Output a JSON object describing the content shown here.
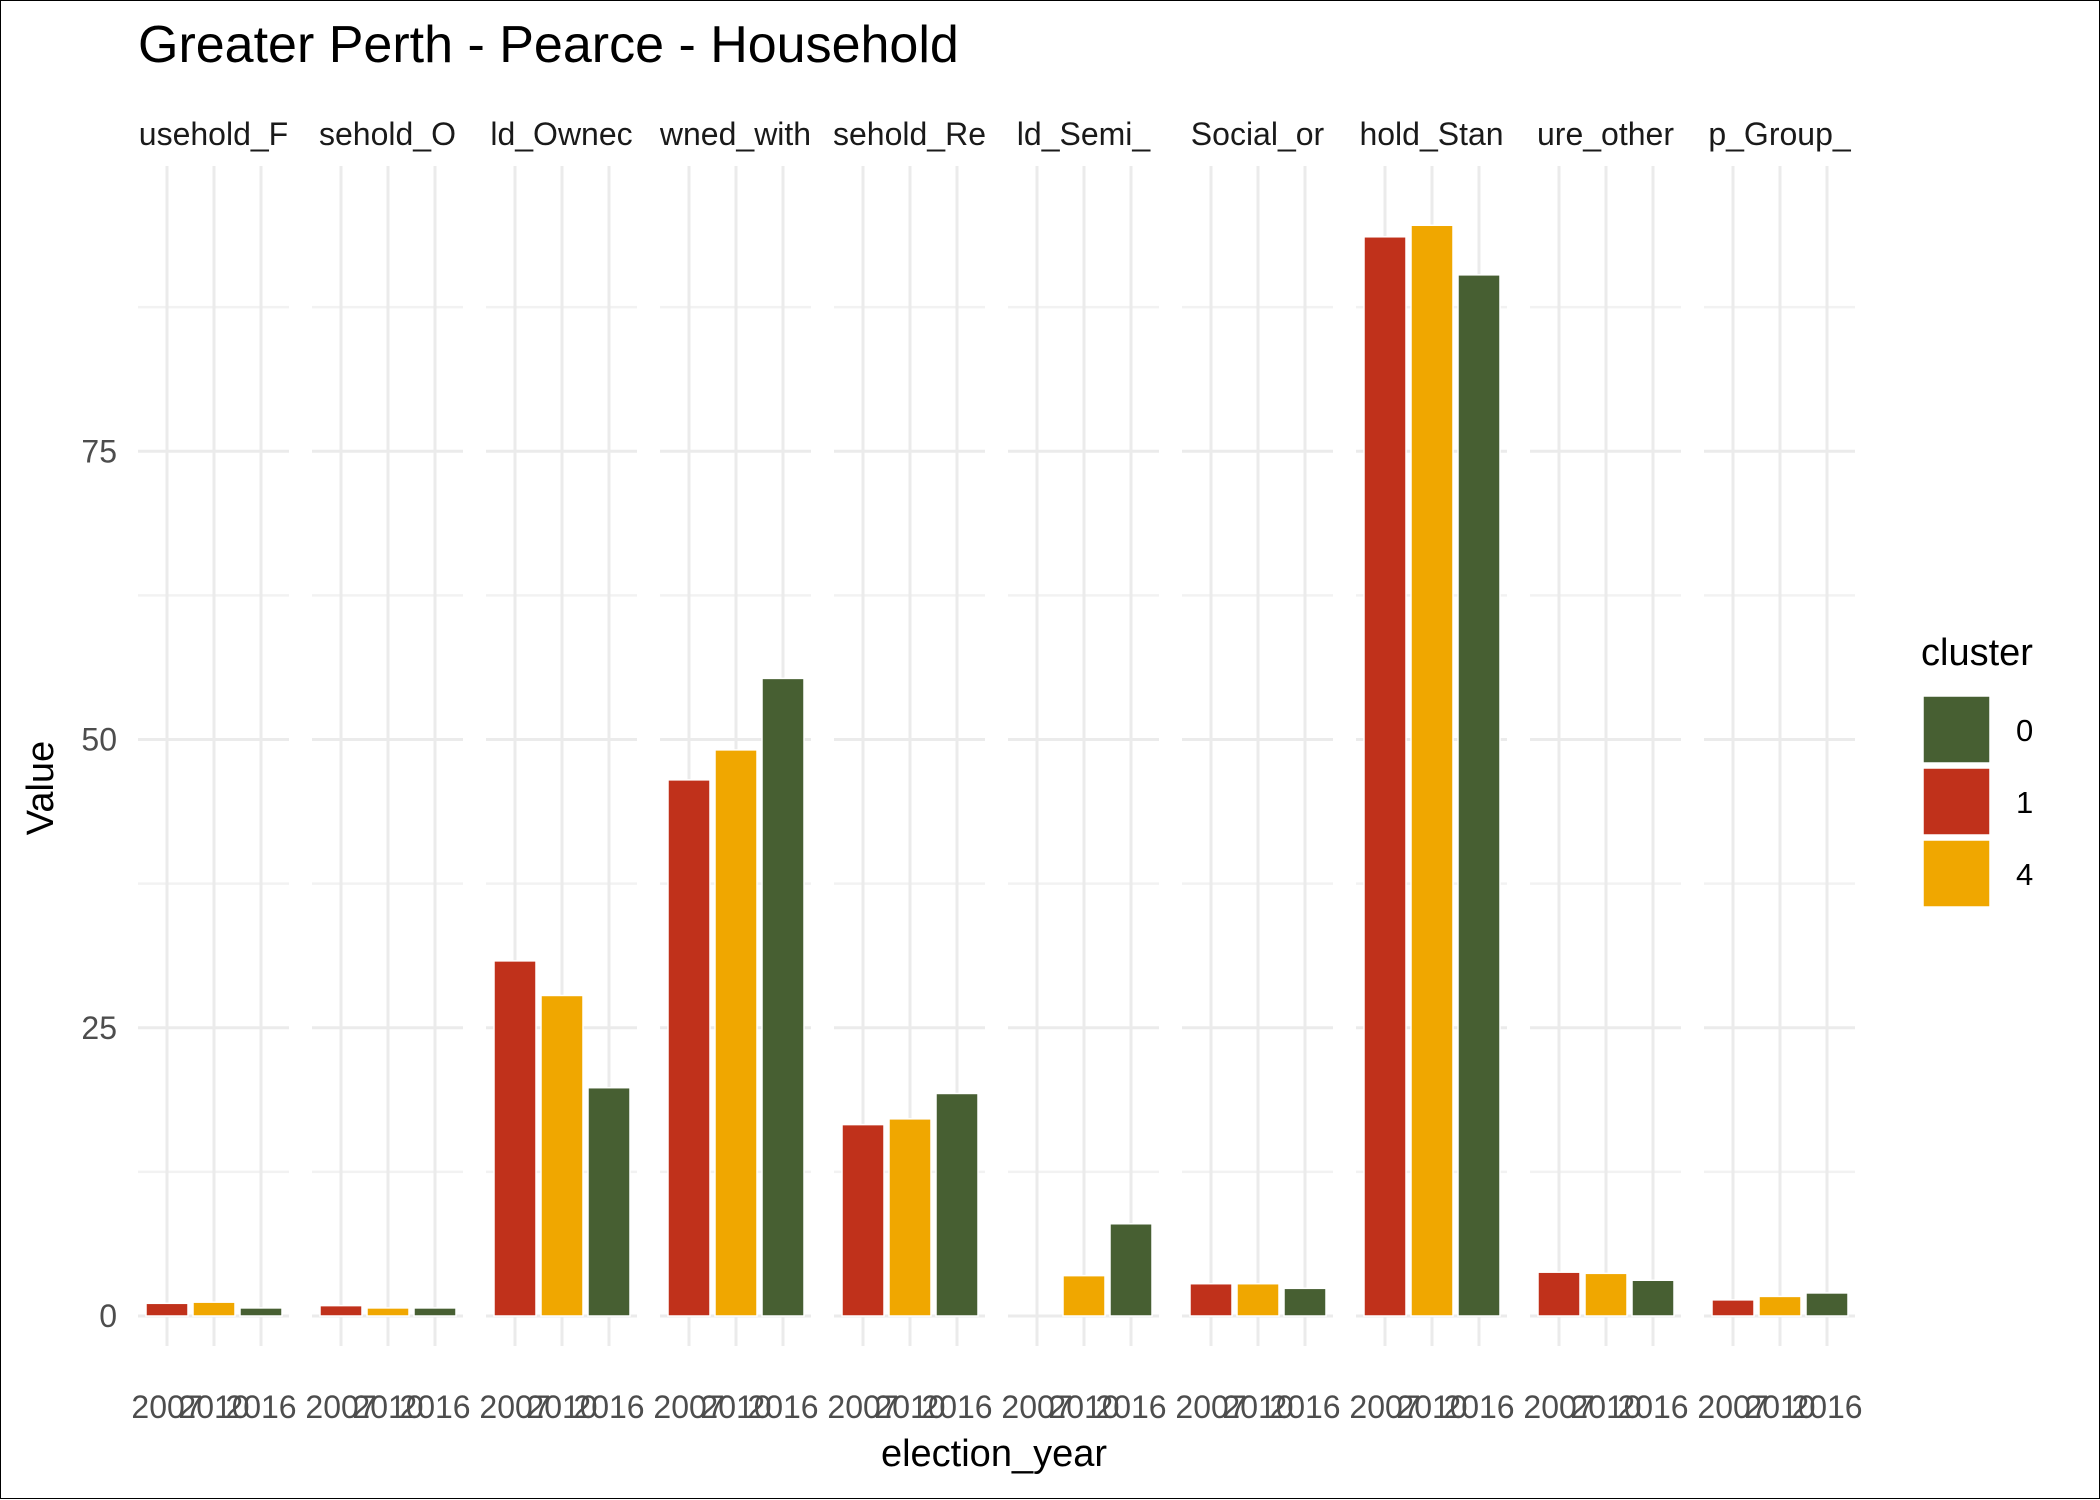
{
  "chart_data": {
    "type": "bar",
    "title": "Greater Perth - Pearce - Household",
    "xlabel": "election_year",
    "ylabel": "Value",
    "ylim": [
      -1.5,
      99
    ],
    "yticks": [
      0,
      25,
      50,
      75
    ],
    "years": [
      "2007",
      "2010",
      "2016"
    ],
    "year_clusters": {
      "2007": "1",
      "2010": "4",
      "2016": "0"
    },
    "grid": true,
    "legend": {
      "title": "cluster",
      "position": "right",
      "entries": [
        {
          "label": "0",
          "color": "#475f32"
        },
        {
          "label": "1",
          "color": "#c0311b"
        },
        {
          "label": "4",
          "color": "#f0a700"
        }
      ]
    },
    "facets": [
      {
        "label": "usehold_F",
        "values": [
          1.1,
          1.2,
          0.7
        ]
      },
      {
        "label": "sehold_O",
        "values": [
          0.9,
          0.7,
          0.7
        ]
      },
      {
        "label": "ld_Ownec",
        "values": [
          30.8,
          27.8,
          19.8
        ]
      },
      {
        "label": "wned_with",
        "values": [
          46.5,
          49.1,
          55.3
        ]
      },
      {
        "label": "sehold_Re",
        "values": [
          16.6,
          17.1,
          19.3
        ]
      },
      {
        "label": "ld_Semi_",
        "values": [
          null,
          3.5,
          8.0
        ]
      },
      {
        "label": "Social_or",
        "values": [
          2.8,
          2.8,
          2.4
        ]
      },
      {
        "label": "hold_Stan",
        "values": [
          93.6,
          94.6,
          90.3
        ]
      },
      {
        "label": "ure_other",
        "values": [
          3.8,
          3.7,
          3.1
        ]
      },
      {
        "label": "p_Group_",
        "values": [
          1.4,
          1.7,
          2.0
        ]
      }
    ]
  }
}
